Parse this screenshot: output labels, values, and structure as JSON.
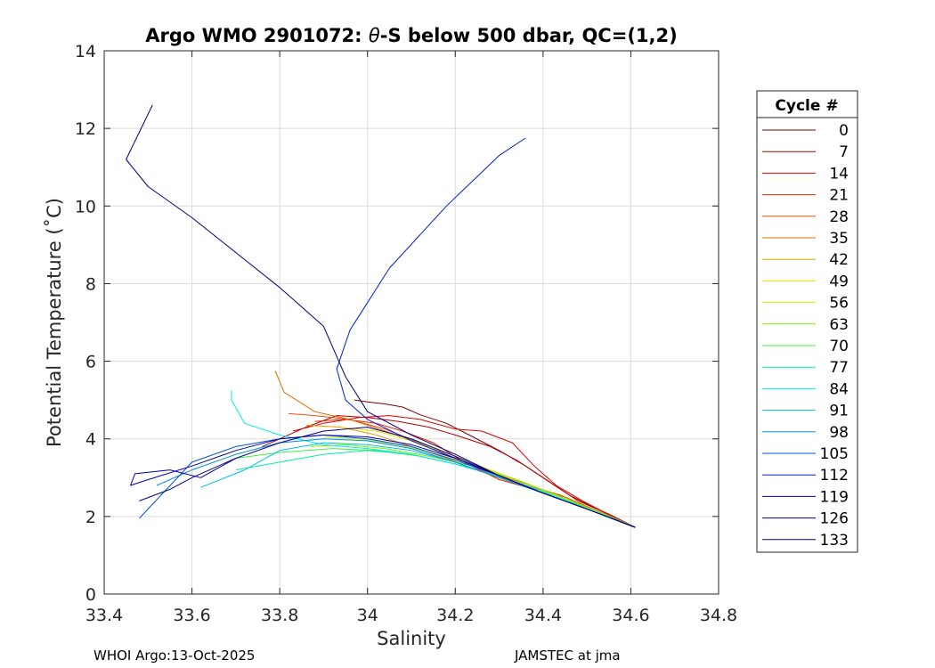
{
  "chart_data": {
    "type": "line",
    "title": "Argo WMO 2901072: θ-S below 500 dbar,  QC=(1,2)",
    "title_parts": {
      "prefix": "Argo WMO 2901072: ",
      "theta": "θ",
      "suffix": "-S below 500 dbar,  QC=(1,2)"
    },
    "xlabel": "Salinity",
    "ylabel": "Potential Temperature (˚C)",
    "xlim": [
      33.4,
      34.8
    ],
    "ylim": [
      0,
      14
    ],
    "xticks": [
      33.4,
      33.6,
      33.8,
      34,
      34.2,
      34.4,
      34.6,
      34.8
    ],
    "xtick_labels": [
      "33.4",
      "33.6",
      "33.8",
      "34",
      "34.2",
      "34.4",
      "34.6",
      "34.8"
    ],
    "yticks": [
      0,
      2,
      4,
      6,
      8,
      10,
      12,
      14
    ],
    "ytick_labels": [
      "0",
      "2",
      "4",
      "6",
      "8",
      "10",
      "12",
      "14"
    ],
    "grid": true,
    "legend": {
      "title": "Cycle #",
      "placement": "right-outside",
      "entries": [
        {
          "label": "0",
          "color": "#800000"
        },
        {
          "label": "7",
          "color": "#b00000"
        },
        {
          "label": "14",
          "color": "#e00000"
        },
        {
          "label": "21",
          "color": "#f02000"
        },
        {
          "label": "28",
          "color": "#f05010"
        },
        {
          "label": "35",
          "color": "#e07000"
        },
        {
          "label": "42",
          "color": "#e8a000"
        },
        {
          "label": "49",
          "color": "#f0e000"
        },
        {
          "label": "56",
          "color": "#c8f000"
        },
        {
          "label": "63",
          "color": "#80f000"
        },
        {
          "label": "70",
          "color": "#40f040"
        },
        {
          "label": "77",
          "color": "#00f0a0"
        },
        {
          "label": "84",
          "color": "#00f0e0"
        },
        {
          "label": "91",
          "color": "#00c0f0"
        },
        {
          "label": "98",
          "color": "#0090e0"
        },
        {
          "label": "105",
          "color": "#0050e0"
        },
        {
          "label": "112",
          "color": "#0020d0"
        },
        {
          "label": "119",
          "color": "#0000b0"
        },
        {
          "label": "126",
          "color": "#000090"
        },
        {
          "label": "133",
          "color": "#000080"
        }
      ]
    },
    "series": [
      {
        "name": "0",
        "color": "#800000",
        "x": [
          34.61,
          34.55,
          34.48,
          34.42,
          34.36,
          34.3,
          34.24,
          34.18,
          34.12,
          34.08,
          34.04,
          34.0,
          33.97
        ],
        "y": [
          1.72,
          2.06,
          2.4,
          2.85,
          3.3,
          3.7,
          4.05,
          4.4,
          4.62,
          4.82,
          4.9,
          4.95,
          5.0
        ]
      },
      {
        "name": "7",
        "color": "#b00000",
        "x": [
          34.61,
          34.54,
          34.46,
          34.4,
          34.34,
          34.28,
          34.2,
          34.14,
          34.07,
          34.0,
          33.93,
          33.86,
          33.8,
          33.76
        ],
        "y": [
          1.72,
          2.1,
          2.55,
          3.0,
          3.45,
          3.8,
          4.1,
          4.3,
          4.45,
          4.55,
          4.6,
          4.3,
          4.0,
          3.8
        ]
      },
      {
        "name": "14",
        "color": "#e00000",
        "x": [
          34.61,
          34.55,
          34.49,
          34.43,
          34.38,
          34.33,
          34.26,
          34.2,
          34.12,
          34.05,
          33.98,
          33.9,
          33.83
        ],
        "y": [
          1.72,
          2.05,
          2.4,
          2.8,
          3.3,
          3.9,
          4.2,
          4.25,
          4.5,
          4.6,
          4.55,
          4.4,
          4.2
        ]
      },
      {
        "name": "21",
        "color": "#f02000",
        "x": [
          34.61,
          34.53,
          34.45,
          34.38,
          34.3,
          34.22,
          34.15,
          34.08,
          34.02,
          33.95,
          33.88
        ],
        "y": [
          1.72,
          2.1,
          2.5,
          2.7,
          2.95,
          3.4,
          3.9,
          4.2,
          4.4,
          4.5,
          4.45
        ]
      },
      {
        "name": "28",
        "color": "#f05010",
        "x": [
          34.61,
          34.52,
          34.44,
          34.36,
          34.28,
          34.2,
          34.12,
          34.04,
          33.96,
          33.88,
          33.82
        ],
        "y": [
          1.72,
          2.15,
          2.55,
          2.8,
          3.1,
          3.5,
          3.9,
          4.25,
          4.5,
          4.6,
          4.65
        ]
      },
      {
        "name": "35",
        "color": "#e07000",
        "x": [
          34.61,
          34.53,
          34.45,
          34.37,
          34.29,
          34.2,
          34.12,
          34.04,
          33.96,
          33.88,
          33.81,
          33.79
        ],
        "y": [
          1.72,
          2.12,
          2.5,
          2.8,
          3.1,
          3.5,
          3.9,
          4.2,
          4.5,
          4.7,
          5.2,
          5.75
        ]
      },
      {
        "name": "42",
        "color": "#e8a000",
        "x": [
          34.61,
          34.52,
          34.43,
          34.35,
          34.26,
          34.18,
          34.1,
          34.02,
          33.94,
          33.86
        ],
        "y": [
          1.72,
          2.15,
          2.5,
          2.8,
          3.15,
          3.5,
          3.8,
          4.1,
          4.3,
          4.35
        ]
      },
      {
        "name": "49",
        "color": "#f0e000",
        "x": [
          34.61,
          34.52,
          34.44,
          34.36,
          34.28,
          34.19,
          34.1,
          34.02,
          33.94
        ],
        "y": [
          1.72,
          2.15,
          2.5,
          2.85,
          3.2,
          3.6,
          3.95,
          4.2,
          4.3
        ]
      },
      {
        "name": "56",
        "color": "#c8f000",
        "x": [
          34.61,
          34.52,
          34.43,
          34.34,
          34.25,
          34.16,
          34.07,
          33.98,
          33.9
        ],
        "y": [
          1.72,
          2.15,
          2.55,
          2.95,
          3.3,
          3.6,
          3.85,
          4.0,
          4.05
        ]
      },
      {
        "name": "63",
        "color": "#80f000",
        "x": [
          34.61,
          34.52,
          34.43,
          34.34,
          34.24,
          34.14,
          34.04,
          33.95,
          33.87
        ],
        "y": [
          1.72,
          2.15,
          2.55,
          2.95,
          3.3,
          3.55,
          3.75,
          3.85,
          3.8
        ]
      },
      {
        "name": "70",
        "color": "#40f040",
        "x": [
          34.61,
          34.52,
          34.42,
          34.32,
          34.22,
          34.12,
          34.02,
          33.92,
          33.8,
          33.7
        ],
        "y": [
          1.72,
          2.15,
          2.55,
          2.95,
          3.3,
          3.55,
          3.7,
          3.75,
          3.65,
          3.5
        ]
      },
      {
        "name": "77",
        "color": "#00f0a0",
        "x": [
          34.61,
          34.51,
          34.41,
          34.31,
          34.2,
          34.1,
          34.0,
          33.9,
          33.8,
          33.7
        ],
        "y": [
          1.72,
          2.15,
          2.6,
          3.0,
          3.35,
          3.6,
          3.7,
          3.6,
          3.4,
          3.2
        ]
      },
      {
        "name": "84",
        "color": "#00f0e0",
        "x": [
          34.61,
          34.51,
          34.41,
          34.31,
          34.2,
          34.1,
          34.0,
          33.9,
          33.8,
          33.72,
          33.7,
          33.69,
          33.69
        ],
        "y": [
          1.72,
          2.15,
          2.6,
          3.0,
          3.35,
          3.6,
          3.75,
          3.85,
          4.1,
          4.4,
          4.8,
          5.0,
          5.25
        ]
      },
      {
        "name": "91",
        "color": "#00c0f0",
        "x": [
          34.61,
          34.51,
          34.4,
          34.3,
          34.2,
          34.1,
          34.0,
          33.9,
          33.8,
          33.72,
          33.62
        ],
        "y": [
          1.72,
          2.15,
          2.6,
          3.0,
          3.4,
          3.7,
          3.85,
          3.9,
          3.7,
          3.2,
          2.75
        ]
      },
      {
        "name": "98",
        "color": "#0090e0",
        "x": [
          34.61,
          34.51,
          34.4,
          34.3,
          34.2,
          34.1,
          34.0,
          33.9,
          33.8,
          33.7,
          33.6,
          33.52
        ],
        "y": [
          1.72,
          2.15,
          2.6,
          3.0,
          3.4,
          3.75,
          3.95,
          4.0,
          3.9,
          3.6,
          3.2,
          2.8
        ]
      },
      {
        "name": "105",
        "color": "#0050e0",
        "x": [
          34.61,
          34.51,
          34.4,
          34.3,
          34.2,
          34.1,
          34.0,
          33.9,
          33.8,
          33.7,
          33.6,
          33.48
        ],
        "y": [
          1.72,
          2.15,
          2.6,
          3.05,
          3.45,
          3.8,
          4.0,
          4.1,
          4.0,
          3.8,
          3.4,
          1.95
        ]
      },
      {
        "name": "112",
        "color": "#0020d0",
        "x": [
          34.61,
          34.51,
          34.4,
          34.3,
          34.2,
          34.1,
          34.0,
          33.95,
          33.93,
          33.96,
          34.05,
          34.18,
          34.3,
          34.36
        ],
        "y": [
          1.72,
          2.15,
          2.6,
          3.05,
          3.5,
          3.95,
          4.5,
          5.0,
          5.8,
          6.8,
          8.4,
          10.0,
          11.3,
          11.75
        ]
      },
      {
        "name": "119",
        "color": "#0000b0",
        "x": [
          34.61,
          34.51,
          34.4,
          34.3,
          34.2,
          34.1,
          34.0,
          33.9,
          33.8,
          33.7,
          33.6,
          33.5,
          33.46,
          33.47,
          33.55,
          33.62,
          33.7
        ],
        "y": [
          1.72,
          2.15,
          2.6,
          3.05,
          3.5,
          3.85,
          4.05,
          4.1,
          4.0,
          3.7,
          3.3,
          2.95,
          2.8,
          3.1,
          3.2,
          3.0,
          3.5
        ]
      },
      {
        "name": "126",
        "color": "#000090",
        "x": [
          34.61,
          34.51,
          34.4,
          34.3,
          34.2,
          34.1,
          34.0,
          33.9,
          33.8,
          33.7,
          33.6,
          33.55,
          33.48
        ],
        "y": [
          1.72,
          2.15,
          2.6,
          3.05,
          3.55,
          4.0,
          4.3,
          4.2,
          3.9,
          3.5,
          3.0,
          2.7,
          2.4
        ]
      },
      {
        "name": "133",
        "color": "#000080",
        "x": [
          34.61,
          34.51,
          34.4,
          34.3,
          34.2,
          34.1,
          34.0,
          33.95,
          33.9,
          33.8,
          33.7,
          33.6,
          33.5,
          33.45,
          33.48,
          33.51
        ],
        "y": [
          1.72,
          2.15,
          2.6,
          3.05,
          3.6,
          4.1,
          4.7,
          5.6,
          6.9,
          7.9,
          8.8,
          9.7,
          10.5,
          11.2,
          11.9,
          12.6
        ]
      }
    ]
  },
  "footer": {
    "left": "WHOI Argo:13-Oct-2025",
    "right": "JAMSTEC at jma"
  }
}
